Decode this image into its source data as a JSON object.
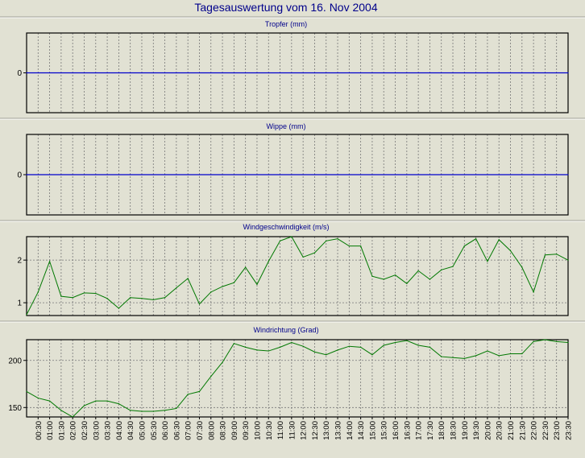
{
  "page_title": "Tagesauswertung vom 16. Nov 2004",
  "colors": {
    "background": "#e1e1d3",
    "plot_bg": "#e1e1d3",
    "zero_line": "#0000cc",
    "series_line": "#007800",
    "title_text": "#00008b",
    "grid": "#777777"
  },
  "time_labels": [
    "00:30",
    "01:00",
    "01:30",
    "02:00",
    "02:30",
    "03:00",
    "03:30",
    "04:00",
    "04:30",
    "05:00",
    "05:30",
    "06:00",
    "06:30",
    "07:00",
    "07:30",
    "08:00",
    "08:30",
    "09:00",
    "09:30",
    "10:00",
    "10:30",
    "11:00",
    "11:30",
    "12:00",
    "12:30",
    "13:00",
    "13:30",
    "14:00",
    "14:30",
    "15:00",
    "15:30",
    "16:00",
    "16:30",
    "17:00",
    "17:30",
    "18:00",
    "18:30",
    "19:00",
    "19:30",
    "20:00",
    "20:30",
    "21:00",
    "21:30",
    "22:00",
    "22:30",
    "23:00",
    "23:30"
  ],
  "chart_data": [
    {
      "type": "line",
      "title": "Tropfer (mm)",
      "ylim": [
        -1,
        1
      ],
      "yticks": [
        0
      ],
      "grid": "vertical dashed at each half hour",
      "series": [
        {
          "values": [
            0,
            0,
            0,
            0,
            0,
            0,
            0,
            0,
            0,
            0,
            0,
            0,
            0,
            0,
            0,
            0,
            0,
            0,
            0,
            0,
            0,
            0,
            0,
            0,
            0,
            0,
            0,
            0,
            0,
            0,
            0,
            0,
            0,
            0,
            0,
            0,
            0,
            0,
            0,
            0,
            0,
            0,
            0,
            0,
            0,
            0,
            0,
            0
          ]
        }
      ]
    },
    {
      "type": "line",
      "title": "Wippe (mm)",
      "ylim": [
        -1,
        1
      ],
      "yticks": [
        0
      ],
      "grid": "vertical dashed at each half hour",
      "series": [
        {
          "values": [
            0,
            0,
            0,
            0,
            0,
            0,
            0,
            0,
            0,
            0,
            0,
            0,
            0,
            0,
            0,
            0,
            0,
            0,
            0,
            0,
            0,
            0,
            0,
            0,
            0,
            0,
            0,
            0,
            0,
            0,
            0,
            0,
            0,
            0,
            0,
            0,
            0,
            0,
            0,
            0,
            0,
            0,
            0,
            0,
            0,
            0,
            0,
            0
          ]
        }
      ]
    },
    {
      "type": "line",
      "title": "Windgeschwindigkeit (m/s)",
      "ylim": [
        0.7,
        2.55
      ],
      "yticks": [
        1,
        2
      ],
      "grid": "vertical dashed at each half hour, horizontal dashed at ticks",
      "series": [
        {
          "values": [
            0.72,
            1.25,
            1.97,
            1.15,
            1.12,
            1.23,
            1.22,
            1.1,
            0.87,
            1.12,
            1.1,
            1.07,
            1.12,
            1.35,
            1.57,
            0.97,
            1.25,
            1.38,
            1.47,
            1.83,
            1.43,
            1.97,
            2.45,
            2.55,
            2.07,
            2.17,
            2.45,
            2.5,
            2.33,
            2.33,
            1.62,
            1.55,
            1.65,
            1.45,
            1.75,
            1.55,
            1.77,
            1.85,
            2.33,
            2.5,
            1.97,
            2.48,
            2.22,
            1.83,
            1.25,
            2.12,
            2.14,
            2.0
          ]
        }
      ]
    },
    {
      "type": "line",
      "title": "Windrichtung (Grad)",
      "ylim": [
        140,
        222
      ],
      "yticks": [
        150,
        200
      ],
      "grid": "vertical dashed at each half hour, horizontal dashed at ticks",
      "series": [
        {
          "values": [
            167,
            160,
            157,
            147,
            140,
            152,
            157,
            157,
            154,
            147,
            146,
            146,
            147,
            149,
            164,
            167,
            183,
            198,
            218,
            214,
            211,
            210,
            214,
            219,
            215,
            209,
            206,
            211,
            215,
            214,
            206,
            216,
            219,
            221,
            216,
            214,
            204,
            203,
            202,
            205,
            210,
            205,
            207,
            207,
            220,
            222,
            220,
            219
          ]
        }
      ]
    }
  ]
}
